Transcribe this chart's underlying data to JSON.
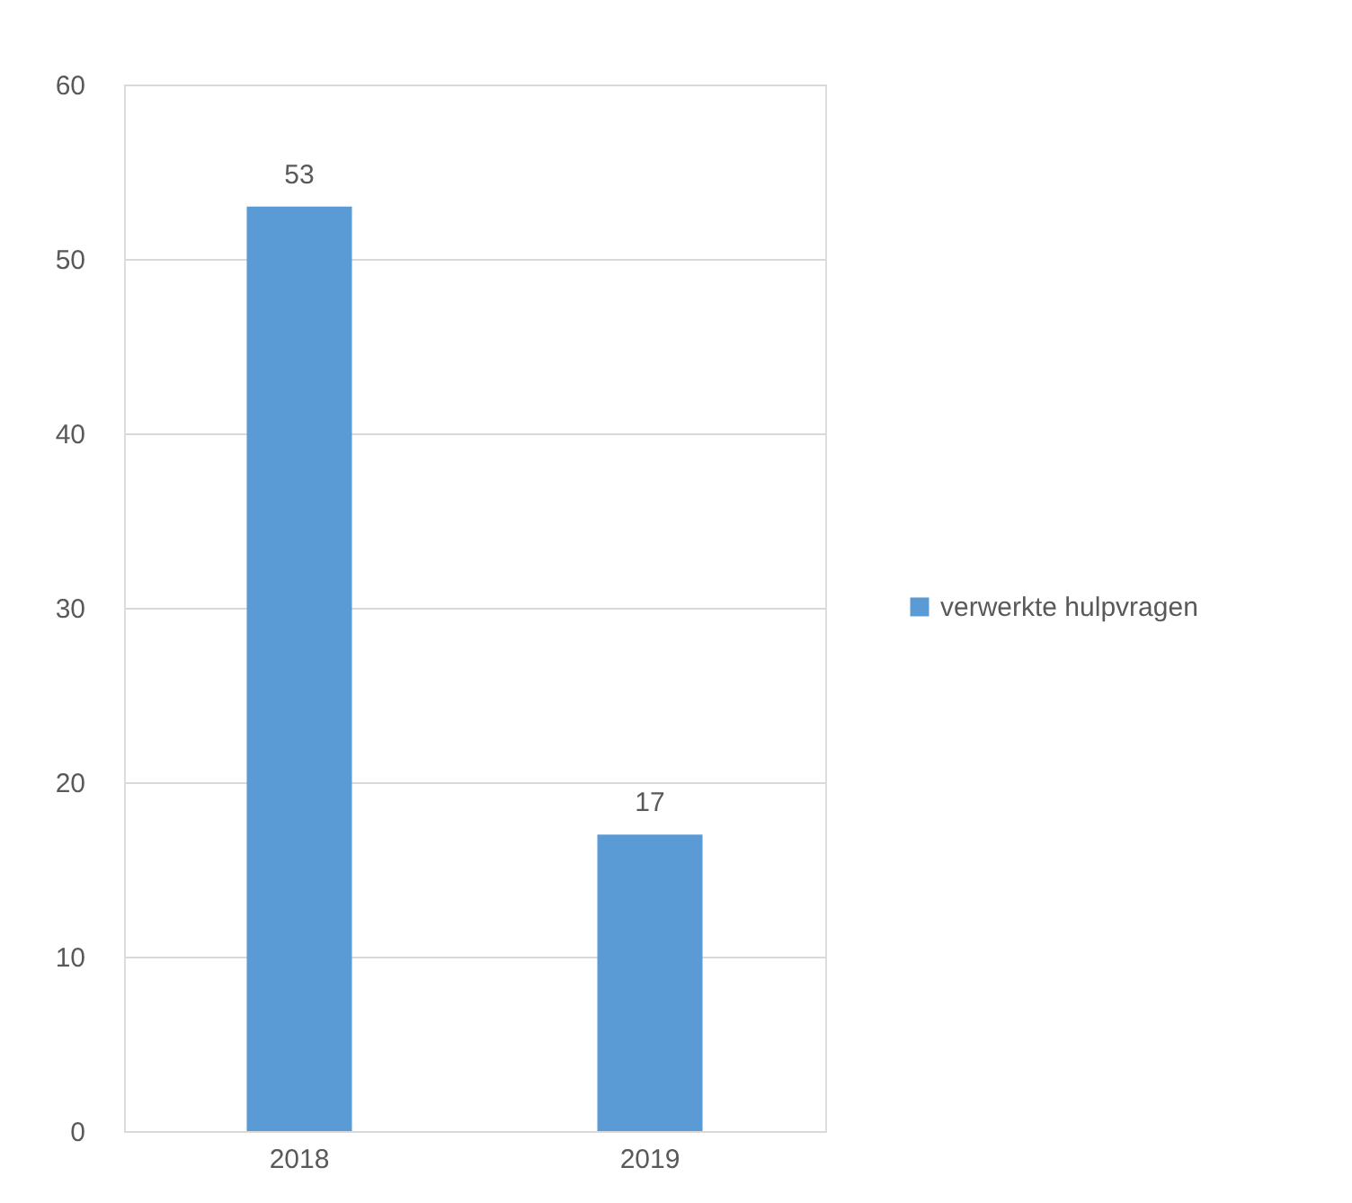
{
  "chart_data": {
    "type": "bar",
    "categories": [
      "2018",
      "2019"
    ],
    "series": [
      {
        "name": "verwerkte hulpvragen",
        "color": "#5b9bd5",
        "values": [
          53,
          17
        ]
      }
    ],
    "ylim": [
      0,
      60
    ],
    "yticks": [
      0,
      10,
      20,
      30,
      40,
      50,
      60
    ],
    "grid": "y",
    "legend": "right",
    "data_labels": true
  }
}
